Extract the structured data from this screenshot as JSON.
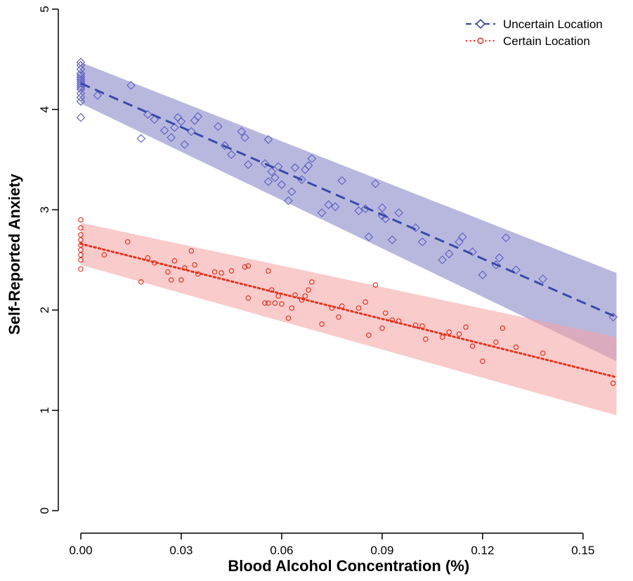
{
  "chart_data": {
    "type": "scatter",
    "xlabel": "Blood Alcohol Concentration (%)",
    "ylabel": "Self-Reported Anxiety",
    "xlim": [
      0,
      0.16
    ],
    "ylim": [
      0,
      5
    ],
    "x_ticks": [
      "0.00",
      "0.03",
      "0.06",
      "0.09",
      "0.12",
      "0.15"
    ],
    "y_ticks": [
      "0",
      "1",
      "2",
      "3",
      "4",
      "5"
    ],
    "grid": false,
    "legend_position": "top-right",
    "series": [
      {
        "name": "Uncertain Location",
        "color": "#3a4aa8",
        "band_color": "#8c8ccc",
        "marker": "diamond",
        "line_style": "dashed",
        "fit": {
          "x": [
            0,
            0.16
          ],
          "y": [
            4.26,
            1.93
          ]
        },
        "band": {
          "x": [
            0,
            0.16
          ],
          "upper": [
            4.47,
            2.37
          ],
          "lower": [
            4.06,
            1.49
          ]
        },
        "points": [
          [
            0,
            3.92
          ],
          [
            0,
            4.08
          ],
          [
            0,
            4.12
          ],
          [
            0,
            4.16
          ],
          [
            0,
            4.2
          ],
          [
            0,
            4.22
          ],
          [
            0,
            4.24
          ],
          [
            0,
            4.26
          ],
          [
            0,
            4.28
          ],
          [
            0,
            4.3
          ],
          [
            0,
            4.32
          ],
          [
            0,
            4.34
          ],
          [
            0,
            4.36
          ],
          [
            0,
            4.4
          ],
          [
            0,
            4.44
          ],
          [
            0,
            4.47
          ],
          [
            0.005,
            4.14
          ],
          [
            0.015,
            4.24
          ],
          [
            0.018,
            3.71
          ],
          [
            0.02,
            3.95
          ],
          [
            0.022,
            3.9
          ],
          [
            0.025,
            3.79
          ],
          [
            0.027,
            3.72
          ],
          [
            0.028,
            3.82
          ],
          [
            0.029,
            3.92
          ],
          [
            0.03,
            3.88
          ],
          [
            0.031,
            3.65
          ],
          [
            0.033,
            3.78
          ],
          [
            0.034,
            3.89
          ],
          [
            0.035,
            3.93
          ],
          [
            0.041,
            3.83
          ],
          [
            0.043,
            3.64
          ],
          [
            0.045,
            3.55
          ],
          [
            0.048,
            3.78
          ],
          [
            0.049,
            3.72
          ],
          [
            0.05,
            3.45
          ],
          [
            0.055,
            3.46
          ],
          [
            0.056,
            3.7
          ],
          [
            0.056,
            3.28
          ],
          [
            0.057,
            3.38
          ],
          [
            0.058,
            3.32
          ],
          [
            0.059,
            3.43
          ],
          [
            0.06,
            3.25
          ],
          [
            0.062,
            3.09
          ],
          [
            0.063,
            3.18
          ],
          [
            0.064,
            3.42
          ],
          [
            0.066,
            3.3
          ],
          [
            0.067,
            3.4
          ],
          [
            0.068,
            3.44
          ],
          [
            0.069,
            3.51
          ],
          [
            0.072,
            2.97
          ],
          [
            0.074,
            3.05
          ],
          [
            0.076,
            3.03
          ],
          [
            0.078,
            3.29
          ],
          [
            0.083,
            2.99
          ],
          [
            0.085,
            3.01
          ],
          [
            0.086,
            2.73
          ],
          [
            0.088,
            3.26
          ],
          [
            0.09,
            2.94
          ],
          [
            0.09,
            3.02
          ],
          [
            0.091,
            2.91
          ],
          [
            0.093,
            2.7
          ],
          [
            0.095,
            2.97
          ],
          [
            0.1,
            2.82
          ],
          [
            0.102,
            2.68
          ],
          [
            0.108,
            2.5
          ],
          [
            0.11,
            2.56
          ],
          [
            0.113,
            2.68
          ],
          [
            0.114,
            2.73
          ],
          [
            0.117,
            2.58
          ],
          [
            0.12,
            2.35
          ],
          [
            0.124,
            2.45
          ],
          [
            0.125,
            2.52
          ],
          [
            0.127,
            2.72
          ],
          [
            0.13,
            2.4
          ],
          [
            0.138,
            2.31
          ],
          [
            0.159,
            1.93
          ]
        ]
      },
      {
        "name": "Certain Location",
        "color": "#e8321e",
        "band_color": "#f4a0a0",
        "marker": "circle",
        "line_style": "dotted",
        "fit": {
          "x": [
            0,
            0.16
          ],
          "y": [
            2.66,
            1.33
          ]
        },
        "band": {
          "x": [
            0,
            0.16
          ],
          "upper": [
            2.87,
            1.73
          ],
          "lower": [
            2.45,
            0.95
          ]
        },
        "points": [
          [
            0,
            2.41
          ],
          [
            0,
            2.5
          ],
          [
            0,
            2.55
          ],
          [
            0,
            2.6
          ],
          [
            0,
            2.65
          ],
          [
            0,
            2.7
          ],
          [
            0,
            2.75
          ],
          [
            0,
            2.82
          ],
          [
            0,
            2.9
          ],
          [
            0.007,
            2.55
          ],
          [
            0.014,
            2.68
          ],
          [
            0.018,
            2.28
          ],
          [
            0.02,
            2.52
          ],
          [
            0.022,
            2.47
          ],
          [
            0.026,
            2.38
          ],
          [
            0.027,
            2.3
          ],
          [
            0.028,
            2.49
          ],
          [
            0.03,
            2.3
          ],
          [
            0.031,
            2.42
          ],
          [
            0.033,
            2.59
          ],
          [
            0.034,
            2.45
          ],
          [
            0.035,
            2.36
          ],
          [
            0.04,
            2.38
          ],
          [
            0.042,
            2.37
          ],
          [
            0.045,
            2.39
          ],
          [
            0.049,
            2.43
          ],
          [
            0.05,
            2.44
          ],
          [
            0.05,
            2.12
          ],
          [
            0.055,
            2.07
          ],
          [
            0.056,
            2.39
          ],
          [
            0.056,
            2.07
          ],
          [
            0.057,
            2.2
          ],
          [
            0.058,
            2.07
          ],
          [
            0.059,
            2.14
          ],
          [
            0.06,
            2.06
          ],
          [
            0.062,
            1.92
          ],
          [
            0.063,
            2.02
          ],
          [
            0.064,
            2.15
          ],
          [
            0.066,
            2.1
          ],
          [
            0.067,
            2.14
          ],
          [
            0.068,
            2.2
          ],
          [
            0.069,
            2.28
          ],
          [
            0.072,
            1.86
          ],
          [
            0.075,
            2.02
          ],
          [
            0.077,
            1.93
          ],
          [
            0.078,
            2.04
          ],
          [
            0.083,
            2.02
          ],
          [
            0.085,
            2.08
          ],
          [
            0.086,
            1.75
          ],
          [
            0.088,
            2.25
          ],
          [
            0.09,
            1.82
          ],
          [
            0.091,
            1.97
          ],
          [
            0.093,
            1.9
          ],
          [
            0.095,
            1.89
          ],
          [
            0.1,
            1.85
          ],
          [
            0.102,
            1.84
          ],
          [
            0.103,
            1.71
          ],
          [
            0.108,
            1.73
          ],
          [
            0.11,
            1.78
          ],
          [
            0.113,
            1.76
          ],
          [
            0.115,
            1.83
          ],
          [
            0.117,
            1.64
          ],
          [
            0.12,
            1.49
          ],
          [
            0.124,
            1.68
          ],
          [
            0.126,
            1.82
          ],
          [
            0.13,
            1.63
          ],
          [
            0.138,
            1.57
          ],
          [
            0.159,
            1.27
          ]
        ]
      }
    ]
  }
}
